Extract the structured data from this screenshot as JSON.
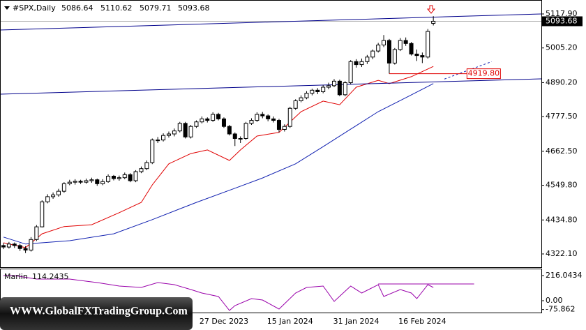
{
  "chart_data": [
    {
      "type": "candlestick",
      "title": "#SPX,Daily",
      "categories": [
        null,
        null,
        null,
        null,
        null,
        null,
        null,
        null,
        null,
        null,
        null,
        null,
        null,
        null,
        null,
        null,
        null,
        null,
        null,
        null,
        null,
        null,
        null,
        null,
        null,
        null,
        null,
        null,
        null,
        null,
        null,
        null,
        null,
        null,
        null,
        null,
        null,
        null,
        null,
        null,
        "27 Dec 2023",
        null,
        null,
        null,
        null,
        null,
        null,
        null,
        null,
        null,
        null,
        null,
        "15 Jan 2024",
        null,
        null,
        null,
        null,
        null,
        null,
        null,
        null,
        null,
        null,
        null,
        "31 Jan 2024",
        null,
        null,
        null,
        null,
        null,
        null,
        null,
        null,
        null,
        null,
        null,
        "16 Feb 2024",
        null,
        null
      ],
      "open": [
        4350,
        4345,
        4355,
        4350,
        4340,
        4335,
        4370,
        4412,
        4495,
        4512,
        4518,
        4530,
        4555,
        4560,
        4563,
        4560,
        4565,
        4568,
        4555,
        4562,
        4580,
        4572,
        4575,
        4585,
        4565,
        4595,
        4605,
        4625,
        4700,
        4700,
        4715,
        4720,
        4730,
        4755,
        4710,
        4745,
        4760,
        4770,
        4765,
        4785,
        4770,
        4745,
        4720,
        4705,
        4705,
        4755,
        4765,
        4785,
        4780,
        4770,
        4765,
        4735,
        4745,
        4805,
        4830,
        4840,
        4855,
        4865,
        4860,
        4875,
        4880,
        4895,
        4850,
        4890,
        4960,
        4950,
        4960,
        4975,
        4995,
        5015,
        5030,
        4955,
        5000,
        5030,
        5020,
        4985,
        4980,
        4975,
        5086.64
      ],
      "high": [
        4358,
        4362,
        4360,
        4356,
        4348,
        4378,
        4418,
        4500,
        4520,
        4526,
        4538,
        4560,
        4568,
        4570,
        4568,
        4572,
        4575,
        4572,
        4570,
        4586,
        4584,
        4582,
        4592,
        4590,
        4600,
        4612,
        4632,
        4705,
        4710,
        4722,
        4728,
        4738,
        4760,
        4760,
        4750,
        4765,
        4778,
        4775,
        4792,
        4790,
        4775,
        4750,
        4725,
        4712,
        4760,
        4772,
        4792,
        4793,
        4785,
        4778,
        4770,
        4752,
        4810,
        4835,
        4848,
        4862,
        4870,
        4872,
        4882,
        4890,
        4902,
        4900,
        4895,
        4965,
        4968,
        4970,
        4982,
        5000,
        5022,
        5048,
        5035,
        5005,
        5038,
        5040,
        5025,
        5000,
        4990,
        5068,
        5110.62
      ],
      "low": [
        4338,
        4340,
        4342,
        4332,
        4325,
        4330,
        4365,
        4410,
        4490,
        4505,
        4512,
        4525,
        4550,
        4552,
        4554,
        4555,
        4558,
        4548,
        4550,
        4558,
        4566,
        4565,
        4570,
        4560,
        4560,
        4590,
        4600,
        4620,
        4690,
        4695,
        4708,
        4712,
        4725,
        4705,
        4705,
        4740,
        4755,
        4758,
        4760,
        4765,
        4740,
        4715,
        4680,
        4690,
        4700,
        4750,
        4760,
        4772,
        4762,
        4758,
        4725,
        4728,
        4740,
        4800,
        4825,
        4835,
        4848,
        4852,
        4855,
        4868,
        4875,
        4845,
        4845,
        4885,
        4940,
        4942,
        4952,
        4968,
        4990,
        5008,
        4920,
        4950,
        4995,
        5012,
        4980,
        4962,
        4955,
        4970,
        5079.71
      ],
      "close": [
        4345,
        4355,
        4350,
        4340,
        4335,
        4370,
        4412,
        4495,
        4512,
        4518,
        4530,
        4555,
        4560,
        4563,
        4560,
        4565,
        4568,
        4555,
        4562,
        4580,
        4572,
        4575,
        4585,
        4565,
        4595,
        4605,
        4625,
        4700,
        4700,
        4715,
        4720,
        4730,
        4755,
        4710,
        4745,
        4760,
        4770,
        4765,
        4785,
        4770,
        4745,
        4720,
        4705,
        4705,
        4755,
        4765,
        4785,
        4780,
        4770,
        4765,
        4735,
        4745,
        4805,
        4830,
        4840,
        4855,
        4865,
        4860,
        4875,
        4880,
        4895,
        4850,
        4890,
        4960,
        4950,
        4960,
        4975,
        4995,
        5015,
        5030,
        4955,
        5000,
        5030,
        5020,
        4985,
        4980,
        4975,
        5060,
        5093.68
      ],
      "up_color": "#ffffff",
      "down_color": "#000000",
      "xlim": [
        -0.63,
        97.6
      ],
      "ylim": [
        4278.1,
        5164.2
      ],
      "yticks": [
        {
          "value": 5117.9,
          "label": "5117.90"
        },
        {
          "value": 5005.2,
          "label": "5005.20"
        },
        {
          "value": 4890.2,
          "label": "4890.20"
        },
        {
          "value": 4777.5,
          "label": "4777.50"
        },
        {
          "value": 4662.5,
          "label": "4662.50"
        },
        {
          "value": 4549.8,
          "label": "4549.80"
        },
        {
          "value": 4434.8,
          "label": "4434.80"
        },
        {
          "value": 4322.1,
          "label": "4322.10"
        }
      ],
      "series": [
        {
          "color": "#e00000",
          "x": [
            0,
            4,
            7,
            11,
            16,
            21,
            25,
            27,
            30,
            34,
            37,
            41,
            43,
            46,
            50,
            54,
            58,
            61,
            64,
            68,
            70,
            74,
            78
          ],
          "values": [
            4359,
            4343,
            4389,
            4413,
            4419,
            4459,
            4493,
            4551,
            4621,
            4655,
            4667,
            4632,
            4667,
            4713,
            4725,
            4794,
            4829,
            4817,
            4875,
            4898,
            4887,
            4910,
            4944
          ]
        },
        {
          "color": "#1020b0",
          "x": [
            0,
            4,
            12,
            20,
            27,
            35,
            42,
            47,
            53,
            58,
            63,
            68,
            73,
            78
          ],
          "values": [
            4378,
            4355,
            4366,
            4389,
            4436,
            4493,
            4540,
            4574,
            4621,
            4678,
            4736,
            4794,
            4840,
            4887
          ]
        },
        {
          "color": "#1020b0",
          "dashed": true,
          "x": [
            80,
            88.6
          ],
          "values": [
            4902,
            4960
          ]
        },
        {
          "color": "#00008b",
          "x": [
            -0.63,
            97.6
          ],
          "values": [
            5064.7,
            5117.9
          ]
        },
        {
          "color": "#00008b",
          "x": [
            -0.63,
            97.6
          ],
          "values": [
            4851.9,
            4902.8
          ]
        }
      ],
      "level": {
        "value": 4919.8,
        "label": "4919.80",
        "color": "#e00000",
        "x": [
          70,
          84.1
        ]
      },
      "watermark": "WWW.GlobalFXTradingGroup.Com"
    },
    {
      "type": "line",
      "title": "Marlin",
      "x": [
        0,
        2,
        6,
        12,
        17,
        21,
        25,
        28,
        31,
        34,
        36,
        39,
        41,
        42,
        45,
        47,
        50,
        53,
        55,
        58,
        60,
        63,
        65,
        68,
        69,
        72,
        74,
        75,
        77,
        78
      ],
      "values": [
        216,
        216,
        186,
        186,
        156,
        126,
        114,
        156,
        138,
        96,
        66,
        36,
        -84,
        -42,
        18,
        6,
        -72,
        66,
        114,
        126,
        -6,
        126,
        66,
        138,
        36,
        96,
        66,
        18,
        138,
        114.2435
      ],
      "color": "#9900aa",
      "ylim": [
        -102,
        276
      ],
      "yticks": [
        216.0434,
        {
          "value": 0,
          "label": "0.00"
        },
        -75.862
      ],
      "divergence": {
        "x": [
          68,
          85.4
        ],
        "values": [
          144,
          144
        ]
      }
    }
  ]
}
